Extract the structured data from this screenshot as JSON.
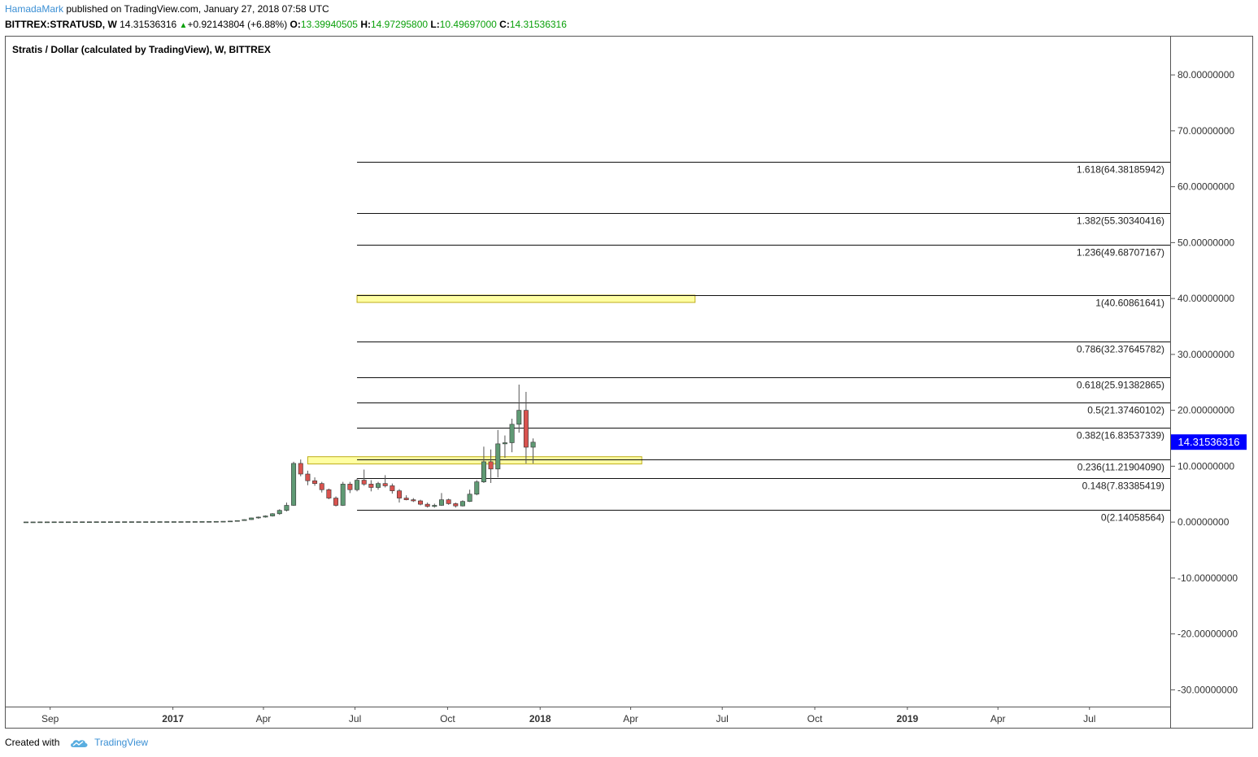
{
  "header": {
    "author": "HamadaMark",
    "published": "published on TradingView.com, January 27, 2018 07:58 UTC",
    "symbol": "BITTREX:STRATUSD, W",
    "last": "14.31536316",
    "change_arrow": "▲",
    "change": "+0.92143804 (+6.88%)",
    "o_label": "O:",
    "o_value": "13.39940505",
    "h_label": "H:",
    "h_value": "14.97295800",
    "l_label": "L:",
    "l_value": "10.49697000",
    "c_label": "C:",
    "c_value": "14.31536316"
  },
  "footer": {
    "created_with": "Created with",
    "brand": "TradingView"
  },
  "colors": {
    "up": "#5f9a74",
    "down": "#d9534f",
    "zone_fill": "#ffff99",
    "zone_stroke": "#b8a400",
    "price_tag": "#0000ff",
    "author": "#3a8fd4"
  },
  "chart_data": {
    "type": "candlestick",
    "title": "Stratis / Dollar (calculated by TradingView), W, BITTREX",
    "ylim": [
      -33,
      87
    ],
    "y_ticks": [
      {
        "value": 80,
        "label": "80.00000000"
      },
      {
        "value": 70,
        "label": "70.00000000"
      },
      {
        "value": 60,
        "label": "60.00000000"
      },
      {
        "value": 50,
        "label": "50.00000000"
      },
      {
        "value": 40,
        "label": "40.00000000"
      },
      {
        "value": 30,
        "label": "30.00000000"
      },
      {
        "value": 20,
        "label": "20.00000000"
      },
      {
        "value": 10,
        "label": "10.00000000"
      },
      {
        "value": 0,
        "label": "0.00000000"
      },
      {
        "value": -10,
        "label": "-10.00000000"
      },
      {
        "value": -20,
        "label": "-20.00000000"
      },
      {
        "value": -30,
        "label": "-30.00000000"
      }
    ],
    "x_ticks": [
      {
        "date": "2016-09-01",
        "label": "Sep",
        "bold": false
      },
      {
        "date": "2017-01-01",
        "label": "2017",
        "bold": true
      },
      {
        "date": "2017-04-01",
        "label": "Apr",
        "bold": false
      },
      {
        "date": "2017-07-01",
        "label": "Jul",
        "bold": false
      },
      {
        "date": "2017-10-01",
        "label": "Oct",
        "bold": false
      },
      {
        "date": "2018-01-01",
        "label": "2018",
        "bold": true
      },
      {
        "date": "2018-04-01",
        "label": "Apr",
        "bold": false
      },
      {
        "date": "2018-07-01",
        "label": "Jul",
        "bold": false
      },
      {
        "date": "2018-10-01",
        "label": "Oct",
        "bold": false
      },
      {
        "date": "2019-01-01",
        "label": "2019",
        "bold": true
      },
      {
        "date": "2019-04-01",
        "label": "Apr",
        "bold": false
      },
      {
        "date": "2019-07-01",
        "label": "Jul",
        "bold": false
      }
    ],
    "x_range": [
      "2016-07-18",
      "2019-09-20"
    ],
    "candles_start": "2016-08-08",
    "candles_step_days": 7,
    "candles": [
      [
        0.02,
        0.03,
        0.01,
        0.03
      ],
      [
        0.03,
        0.04,
        0.02,
        0.03
      ],
      [
        0.03,
        0.04,
        0.02,
        0.04
      ],
      [
        0.04,
        0.05,
        0.03,
        0.04
      ],
      [
        0.04,
        0.05,
        0.03,
        0.05
      ],
      [
        0.05,
        0.06,
        0.04,
        0.05
      ],
      [
        0.05,
        0.06,
        0.04,
        0.05
      ],
      [
        0.05,
        0.07,
        0.04,
        0.06
      ],
      [
        0.06,
        0.07,
        0.05,
        0.06
      ],
      [
        0.06,
        0.07,
        0.05,
        0.06
      ],
      [
        0.06,
        0.08,
        0.05,
        0.07
      ],
      [
        0.07,
        0.08,
        0.06,
        0.07
      ],
      [
        0.07,
        0.08,
        0.06,
        0.07
      ],
      [
        0.07,
        0.08,
        0.06,
        0.07
      ],
      [
        0.07,
        0.09,
        0.06,
        0.08
      ],
      [
        0.08,
        0.09,
        0.07,
        0.08
      ],
      [
        0.08,
        0.09,
        0.07,
        0.08
      ],
      [
        0.08,
        0.09,
        0.07,
        0.08
      ],
      [
        0.08,
        0.09,
        0.07,
        0.08
      ],
      [
        0.08,
        0.1,
        0.07,
        0.09
      ],
      [
        0.09,
        0.1,
        0.08,
        0.09
      ],
      [
        0.09,
        0.1,
        0.08,
        0.09
      ],
      [
        0.09,
        0.1,
        0.08,
        0.09
      ],
      [
        0.09,
        0.11,
        0.08,
        0.1
      ],
      [
        0.1,
        0.11,
        0.09,
        0.1
      ],
      [
        0.1,
        0.12,
        0.09,
        0.11
      ],
      [
        0.11,
        0.13,
        0.1,
        0.12
      ],
      [
        0.12,
        0.14,
        0.11,
        0.13
      ],
      [
        0.13,
        0.16,
        0.12,
        0.15
      ],
      [
        0.15,
        0.2,
        0.14,
        0.19
      ],
      [
        0.19,
        0.3,
        0.17,
        0.28
      ],
      [
        0.28,
        0.5,
        0.26,
        0.45
      ],
      [
        0.45,
        0.8,
        0.4,
        0.75
      ],
      [
        0.75,
        1.0,
        0.6,
        0.9
      ],
      [
        0.9,
        1.2,
        0.8,
        1.1
      ],
      [
        1.1,
        1.6,
        1.0,
        1.5
      ],
      [
        1.5,
        2.3,
        1.3,
        2.1
      ],
      [
        2.1,
        3.5,
        1.9,
        3.0
      ],
      [
        3.0,
        10.8,
        2.9,
        10.5
      ],
      [
        10.5,
        11.2,
        8.2,
        8.6
      ],
      [
        8.6,
        9.2,
        6.6,
        7.4
      ],
      [
        7.4,
        8.0,
        6.5,
        6.9
      ],
      [
        6.9,
        7.2,
        5.3,
        5.8
      ],
      [
        5.8,
        6.0,
        4.1,
        4.3
      ],
      [
        4.3,
        4.6,
        2.8,
        3.0
      ],
      [
        3.0,
        7.2,
        2.9,
        6.8
      ],
      [
        6.8,
        7.2,
        5.2,
        5.8
      ],
      [
        5.8,
        7.8,
        5.5,
        7.5
      ],
      [
        7.5,
        9.4,
        6.5,
        6.8
      ],
      [
        6.8,
        7.5,
        5.5,
        6.2
      ],
      [
        6.2,
        7.2,
        5.8,
        6.9
      ],
      [
        6.9,
        8.4,
        6.2,
        6.5
      ],
      [
        6.5,
        6.9,
        5.1,
        5.6
      ],
      [
        5.6,
        5.9,
        3.5,
        4.3
      ],
      [
        4.3,
        4.8,
        3.9,
        4.0
      ],
      [
        4.0,
        4.3,
        3.6,
        3.8
      ],
      [
        3.8,
        4.0,
        3.0,
        3.2
      ],
      [
        3.2,
        3.5,
        2.6,
        2.8
      ],
      [
        2.8,
        3.3,
        2.6,
        3.0
      ],
      [
        3.0,
        5.2,
        2.9,
        4.0
      ],
      [
        4.0,
        4.2,
        3.1,
        3.3
      ],
      [
        3.3,
        3.5,
        2.6,
        2.9
      ],
      [
        2.9,
        3.9,
        2.8,
        3.7
      ],
      [
        3.7,
        5.8,
        3.6,
        5.0
      ],
      [
        5.0,
        7.5,
        4.8,
        7.2
      ],
      [
        7.2,
        13.5,
        7.0,
        10.8
      ],
      [
        10.8,
        13.0,
        7.0,
        9.5
      ],
      [
        9.5,
        16.5,
        8.0,
        14.0
      ],
      [
        14.0,
        15.5,
        11.5,
        14.2
      ],
      [
        14.2,
        18.5,
        12.5,
        17.5
      ],
      [
        17.5,
        24.6,
        16.0,
        20.0
      ],
      [
        20.0,
        23.3,
        10.5,
        13.4
      ],
      [
        13.4,
        14.97,
        10.5,
        14.3
      ]
    ],
    "fib_levels": [
      {
        "label": "1.618(64.38185942)",
        "value": 64.38185942
      },
      {
        "label": "1.382(55.30340416)",
        "value": 55.30340416
      },
      {
        "label": "1.236(49.68707167)",
        "value": 49.68707167
      },
      {
        "label": "1(40.60861641)",
        "value": 40.60861641
      },
      {
        "label": "0.786(32.37645782)",
        "value": 32.37645782
      },
      {
        "label": "0.618(25.91382865)",
        "value": 25.91382865
      },
      {
        "label": "0.5(21.37460102)",
        "value": 21.37460102
      },
      {
        "label": "0.382(16.83537339)",
        "value": 16.83537339
      },
      {
        "label": "0.236(11.21904090)",
        "value": 11.2190409
      },
      {
        "label": "0.148(7.83385419)",
        "value": 7.83385419
      },
      {
        "label": "0(2.14058564)",
        "value": 2.14058564
      }
    ],
    "fib_start_date": "2017-07-03",
    "zones": [
      {
        "date_start": "2017-05-15",
        "date_end": "2018-04-12",
        "top": 11.7,
        "bottom": 10.4
      },
      {
        "date_start": "2017-07-03",
        "date_end": "2018-06-04",
        "top": 40.6,
        "bottom": 39.3
      }
    ],
    "last_price": "14.31536316",
    "last_value": 14.31536316
  }
}
